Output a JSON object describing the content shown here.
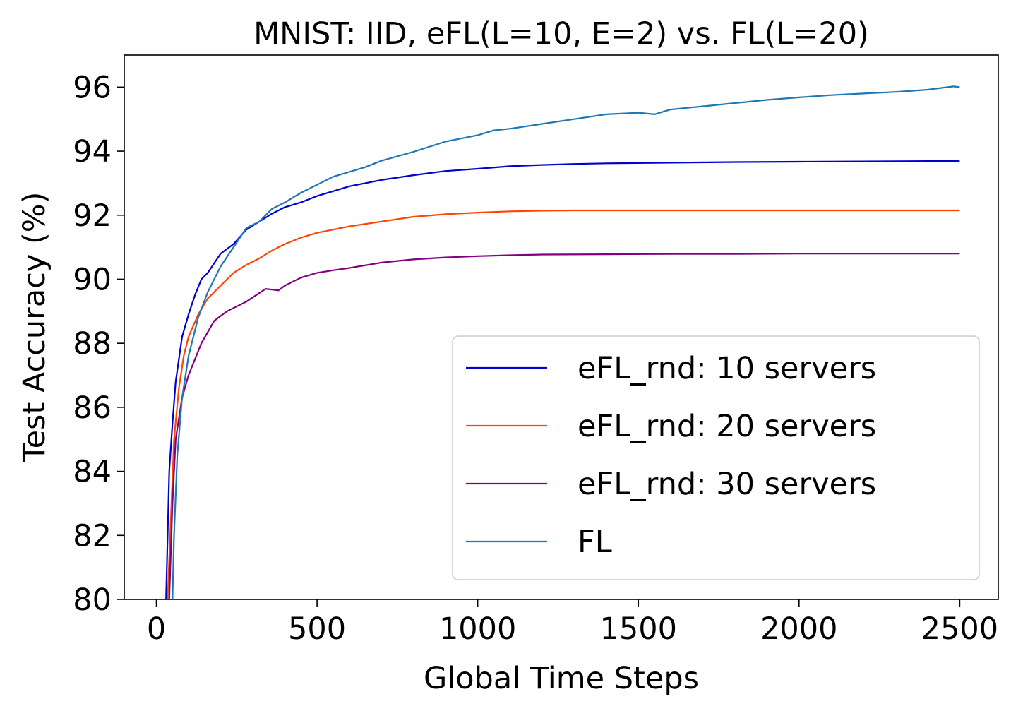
{
  "chart_data": {
    "type": "line",
    "title": "MNIST: IID, eFL(L=10, E=2) vs. FL(L=20)",
    "xlabel": "Global Time Steps",
    "ylabel": "Test Accuracy (%)",
    "xlim": [
      -100,
      2620
    ],
    "ylim": [
      80,
      97
    ],
    "xticks": [
      0,
      500,
      1000,
      1500,
      2000,
      2500
    ],
    "yticks": [
      80,
      82,
      84,
      86,
      88,
      90,
      92,
      94,
      96
    ],
    "grid": false,
    "legend_position": "lower-right",
    "series": [
      {
        "name": "eFL_rnd: 10 servers",
        "color": "#0000cd",
        "points": [
          [
            30,
            80
          ],
          [
            40,
            84
          ],
          [
            50,
            85.5
          ],
          [
            60,
            86.8
          ],
          [
            80,
            88.2
          ],
          [
            100,
            88.9
          ],
          [
            120,
            89.5
          ],
          [
            140,
            90
          ],
          [
            160,
            90.2
          ],
          [
            180,
            90.5
          ],
          [
            200,
            90.8
          ],
          [
            240,
            91.1
          ],
          [
            280,
            91.55
          ],
          [
            320,
            91.8
          ],
          [
            360,
            92.05
          ],
          [
            400,
            92.25
          ],
          [
            450,
            92.4
          ],
          [
            500,
            92.6
          ],
          [
            550,
            92.75
          ],
          [
            600,
            92.9
          ],
          [
            650,
            93
          ],
          [
            700,
            93.1
          ],
          [
            800,
            93.25
          ],
          [
            900,
            93.38
          ],
          [
            1000,
            93.45
          ],
          [
            1100,
            93.53
          ],
          [
            1200,
            93.57
          ],
          [
            1300,
            93.6
          ],
          [
            1400,
            93.62
          ],
          [
            1600,
            93.64
          ],
          [
            1800,
            93.66
          ],
          [
            2000,
            93.67
          ],
          [
            2200,
            93.68
          ],
          [
            2400,
            93.69
          ],
          [
            2500,
            93.69
          ]
        ]
      },
      {
        "name": "eFL_rnd: 20 servers",
        "color": "#ff4500",
        "points": [
          [
            35,
            80
          ],
          [
            45,
            82.5
          ],
          [
            55,
            85
          ],
          [
            70,
            86.6
          ],
          [
            85,
            87.6
          ],
          [
            100,
            88.2
          ],
          [
            130,
            88.9
          ],
          [
            160,
            89.4
          ],
          [
            200,
            89.8
          ],
          [
            240,
            90.2
          ],
          [
            280,
            90.45
          ],
          [
            320,
            90.65
          ],
          [
            360,
            90.9
          ],
          [
            400,
            91.1
          ],
          [
            450,
            91.3
          ],
          [
            500,
            91.45
          ],
          [
            550,
            91.55
          ],
          [
            600,
            91.65
          ],
          [
            700,
            91.8
          ],
          [
            800,
            91.95
          ],
          [
            900,
            92.03
          ],
          [
            1000,
            92.08
          ],
          [
            1100,
            92.12
          ],
          [
            1200,
            92.14
          ],
          [
            1300,
            92.15
          ],
          [
            1500,
            92.15
          ],
          [
            1700,
            92.15
          ],
          [
            2000,
            92.15
          ],
          [
            2200,
            92.15
          ],
          [
            2500,
            92.15
          ]
        ]
      },
      {
        "name": "eFL_rnd: 30 servers",
        "color": "#800080",
        "points": [
          [
            40,
            80
          ],
          [
            50,
            83
          ],
          [
            60,
            85
          ],
          [
            80,
            86.3
          ],
          [
            100,
            87
          ],
          [
            140,
            88
          ],
          [
            180,
            88.7
          ],
          [
            220,
            89.0
          ],
          [
            280,
            89.3
          ],
          [
            340,
            89.7
          ],
          [
            380,
            89.65
          ],
          [
            400,
            89.8
          ],
          [
            450,
            90.05
          ],
          [
            500,
            90.2
          ],
          [
            550,
            90.28
          ],
          [
            600,
            90.35
          ],
          [
            700,
            90.52
          ],
          [
            800,
            90.62
          ],
          [
            900,
            90.68
          ],
          [
            1000,
            90.72
          ],
          [
            1100,
            90.75
          ],
          [
            1200,
            90.77
          ],
          [
            1400,
            90.78
          ],
          [
            1600,
            90.79
          ],
          [
            1800,
            90.79
          ],
          [
            2000,
            90.8
          ],
          [
            2200,
            90.8
          ],
          [
            2500,
            90.8
          ]
        ]
      },
      {
        "name": "FL",
        "color": "#1f77b4",
        "points": [
          [
            50,
            80
          ],
          [
            55,
            82
          ],
          [
            65,
            84.5
          ],
          [
            80,
            86.3
          ],
          [
            100,
            87.6
          ],
          [
            130,
            88.8
          ],
          [
            160,
            89.6
          ],
          [
            200,
            90.4
          ],
          [
            240,
            91
          ],
          [
            280,
            91.6
          ],
          [
            320,
            91.8
          ],
          [
            360,
            92.2
          ],
          [
            400,
            92.4
          ],
          [
            450,
            92.7
          ],
          [
            500,
            92.95
          ],
          [
            550,
            93.2
          ],
          [
            600,
            93.35
          ],
          [
            650,
            93.5
          ],
          [
            700,
            93.7
          ],
          [
            800,
            93.98
          ],
          [
            900,
            94.3
          ],
          [
            1000,
            94.5
          ],
          [
            1050,
            94.65
          ],
          [
            1100,
            94.7
          ],
          [
            1200,
            94.85
          ],
          [
            1300,
            95.0
          ],
          [
            1400,
            95.15
          ],
          [
            1500,
            95.2
          ],
          [
            1550,
            95.15
          ],
          [
            1600,
            95.3
          ],
          [
            1650,
            95.35
          ],
          [
            1700,
            95.4
          ],
          [
            1800,
            95.5
          ],
          [
            1900,
            95.6
          ],
          [
            2000,
            95.68
          ],
          [
            2100,
            95.75
          ],
          [
            2200,
            95.8
          ],
          [
            2300,
            95.85
          ],
          [
            2400,
            95.92
          ],
          [
            2480,
            96.02
          ],
          [
            2500,
            96.0
          ]
        ]
      }
    ]
  }
}
